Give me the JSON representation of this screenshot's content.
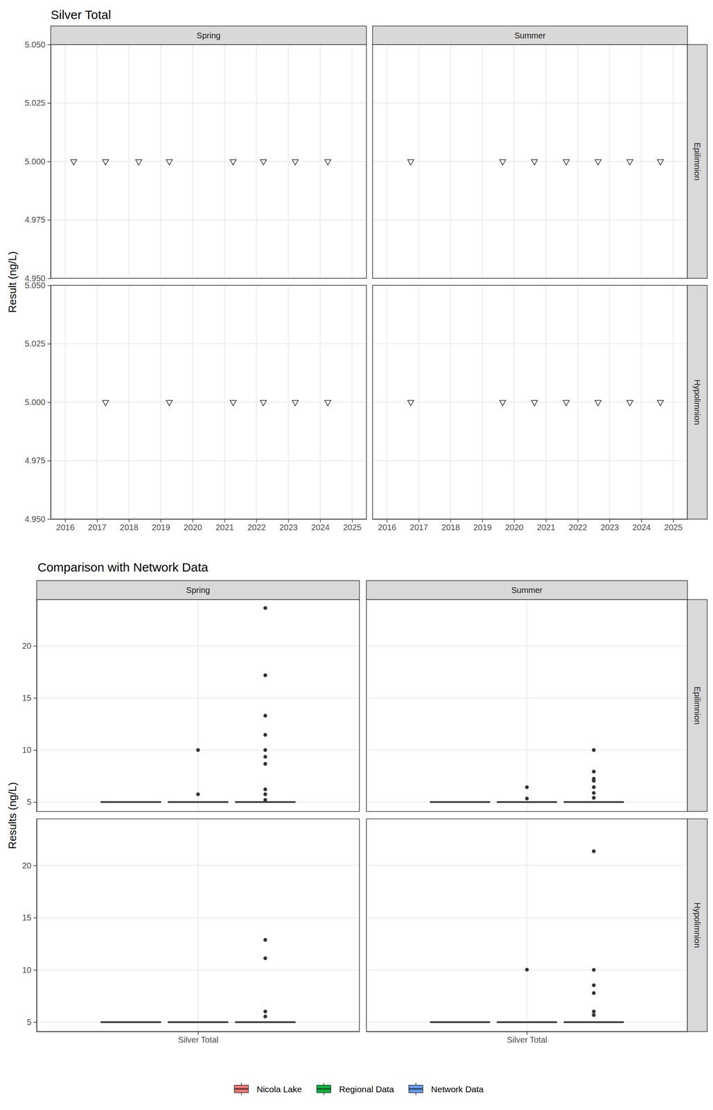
{
  "chart_data": [
    {
      "type": "scatter",
      "title": "Silver Total",
      "y_label": "Result (ng/L)",
      "facet_columns": [
        "Spring",
        "Summer"
      ],
      "facet_rows": [
        "Epilimnion",
        "Hypolimnion"
      ],
      "xlim": [
        2015.55,
        2025.45
      ],
      "xticks": [
        2016,
        2017,
        2018,
        2019,
        2020,
        2021,
        2022,
        2023,
        2024,
        2025
      ],
      "ylim": [
        4.95,
        5.05
      ],
      "yticks": [
        {
          "value": 4.95,
          "label": "4.950"
        },
        {
          "value": 4.975,
          "label": "4.975"
        },
        {
          "value": 5.0,
          "label": "5.000"
        },
        {
          "value": 5.025,
          "label": "5.025"
        },
        {
          "value": 5.05,
          "label": "5.050"
        }
      ],
      "grid": true,
      "marker": "triangle-down-open",
      "panels": [
        [
          {
            "x": [
              2016.27,
              2017.27,
              2018.31,
              2019.27,
              2021.27,
              2022.22,
              2023.22,
              2024.24
            ],
            "values": [
              5,
              5,
              5,
              5,
              5,
              5,
              5,
              5
            ]
          },
          {
            "x": [
              2016.75,
              2019.64,
              2020.64,
              2021.64,
              2022.64,
              2023.64,
              2024.6
            ],
            "values": [
              5,
              5,
              5,
              5,
              5,
              5,
              5
            ]
          }
        ],
        [
          {
            "x": [
              2017.27,
              2019.27,
              2021.27,
              2022.22,
              2023.22,
              2024.24
            ],
            "values": [
              5,
              5,
              5,
              5,
              5,
              5
            ]
          },
          {
            "x": [
              2016.75,
              2019.64,
              2020.64,
              2021.64,
              2022.64,
              2023.64,
              2024.6
            ],
            "values": [
              5,
              5,
              5,
              5,
              5,
              5,
              5
            ]
          }
        ]
      ]
    },
    {
      "type": "box",
      "title": "Comparison with Network Data",
      "y_label": "Results (ng/L)",
      "categories": [
        "Silver Total"
      ],
      "facet_columns": [
        "Spring",
        "Summer"
      ],
      "facet_rows": [
        "Epilimnion",
        "Hypolimnion"
      ],
      "ylim": [
        4.1,
        24.45
      ],
      "yticks": [
        5,
        10,
        15,
        20
      ],
      "grid": true,
      "legend": "bottom",
      "series": [
        {
          "name": "Nicola Lake",
          "color": "#F8766D"
        },
        {
          "name": "Regional Data",
          "color": "#00BA38"
        },
        {
          "name": "Network Data",
          "color": "#619CFF"
        }
      ],
      "panels": [
        [
          [
            {
              "min": 5,
              "q1": 5,
              "median": 5,
              "q3": 5,
              "max": 5,
              "outliers": []
            },
            {
              "min": 5,
              "q1": 5,
              "median": 5,
              "q3": 5,
              "max": 5,
              "outliers": [
                10,
                5.75
              ]
            },
            {
              "min": 5,
              "q1": 5,
              "median": 5,
              "q3": 5,
              "max": 5,
              "outliers": [
                23.64,
                17.18,
                13.3,
                11.46,
                10,
                9.35,
                8.67,
                6.22,
                5.75,
                5.2
              ]
            }
          ],
          [
            {
              "min": 5,
              "q1": 5,
              "median": 5,
              "q3": 5,
              "max": 5,
              "outliers": []
            },
            {
              "min": 5,
              "q1": 5,
              "median": 5,
              "q3": 5,
              "max": 5,
              "outliers": [
                6.43,
                5.34
              ]
            },
            {
              "min": 5,
              "q1": 5,
              "median": 5,
              "q3": 5,
              "max": 5,
              "outliers": [
                10,
                7.93,
                7.24,
                7.04,
                6.43,
                5.88,
                5.41
              ]
            }
          ]
        ],
        [
          [
            {
              "min": 5,
              "q1": 5,
              "median": 5,
              "q3": 5,
              "max": 5,
              "outliers": []
            },
            {
              "min": 5,
              "q1": 5,
              "median": 5,
              "q3": 5,
              "max": 5,
              "outliers": []
            },
            {
              "min": 5,
              "q1": 5,
              "median": 5,
              "q3": 5,
              "max": 5,
              "outliers": [
                12.87,
                11.11,
                6.02,
                5.54
              ]
            }
          ],
          [
            {
              "min": 5,
              "q1": 5,
              "median": 5,
              "q3": 5,
              "max": 5,
              "outliers": []
            },
            {
              "min": 5,
              "q1": 5,
              "median": 5,
              "q3": 5,
              "max": 5,
              "outliers": [
                10.02
              ]
            },
            {
              "min": 5,
              "q1": 5,
              "median": 5,
              "q3": 5,
              "max": 5,
              "outliers": [
                21.36,
                10,
                8.53,
                7.78,
                6.02,
                5.68
              ]
            }
          ]
        ]
      ]
    }
  ]
}
